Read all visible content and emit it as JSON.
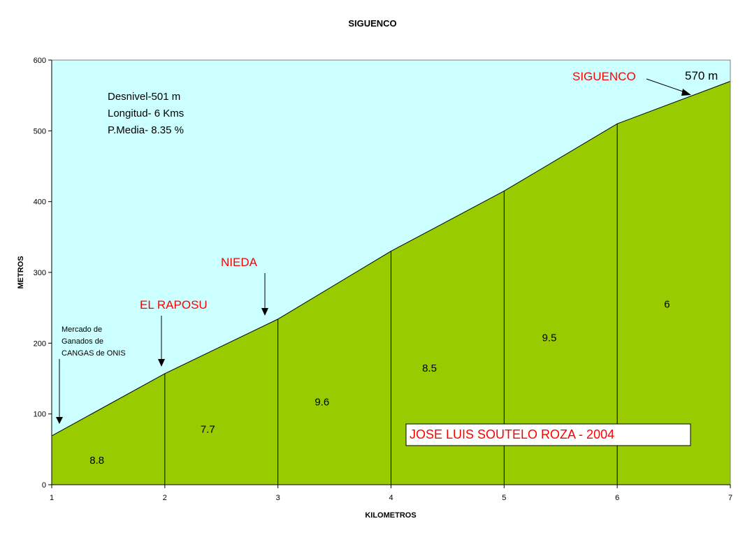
{
  "colors": {
    "sky": "#ccffff",
    "terrain": "#99cc00",
    "place_label": "#ff0000",
    "author_label": "#ff0000"
  },
  "chart_data": {
    "type": "area",
    "title": "SIGUENCO",
    "xlabel": "KILOMETROS",
    "ylabel": "METROS",
    "xlim": [
      1,
      7
    ],
    "ylim": [
      0,
      600
    ],
    "x_ticks": [
      "1",
      "2",
      "3",
      "4",
      "5",
      "6",
      "7"
    ],
    "y_ticks": [
      "0",
      "100",
      "200",
      "300",
      "400",
      "500",
      "600"
    ],
    "x": [
      1,
      2,
      3,
      4,
      5,
      6,
      7
    ],
    "values": [
      69,
      157,
      234,
      330,
      415,
      510,
      570
    ],
    "segment_gradients": [
      {
        "label": "8.8",
        "x": 1.4
      },
      {
        "label": "7.7",
        "x": 2.38
      },
      {
        "label": "9.6",
        "x": 3.39
      },
      {
        "label": "8.5",
        "x": 4.34
      },
      {
        "label": "9.5",
        "x": 5.4
      },
      {
        "label": "6",
        "x": 6.44
      }
    ],
    "stats": [
      "Desnivel-501 m",
      "Longitud- 6 Kms",
      "P.Media- 8.35 %"
    ],
    "annotations": {
      "start_note": [
        "Mercado de",
        "Ganados de",
        "CANGAS de ONIS"
      ],
      "el_raposu": "EL RAPOSU",
      "nieda": "NIEDA",
      "siguenco": "SIGUENCO",
      "summit_height": "570 m",
      "author": "JOSE LUIS SOUTELO ROZA - 2004"
    }
  }
}
